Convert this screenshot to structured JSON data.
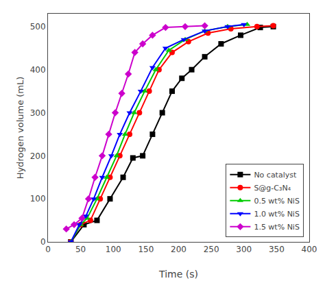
{
  "chart_data": {
    "type": "line",
    "xlabel": "Time (s)",
    "ylabel": "Hydrogen volume (mL)",
    "xlim": [
      0,
      400
    ],
    "ylim": [
      0,
      530
    ],
    "xticks": [
      0,
      50,
      100,
      150,
      200,
      250,
      300,
      350,
      400
    ],
    "yticks": [
      0,
      100,
      200,
      300,
      400,
      500
    ],
    "grid": false,
    "legend": "lower right",
    "series": [
      {
        "name": "No catalyst",
        "color": "#000000",
        "marker": "square",
        "x": [
          35,
          55,
          75,
          95,
          115,
          130,
          145,
          160,
          175,
          190,
          205,
          220,
          240,
          265,
          295,
          325,
          345
        ],
        "values": [
          0,
          40,
          50,
          100,
          150,
          195,
          200,
          250,
          300,
          350,
          380,
          400,
          430,
          460,
          480,
          498,
          500
        ]
      },
      {
        "name": "S@g-C₃N₄",
        "color": "#ff0000",
        "marker": "circle",
        "x": [
          35,
          50,
          65,
          80,
          95,
          110,
          125,
          140,
          155,
          170,
          190,
          215,
          245,
          280,
          320,
          345
        ],
        "values": [
          0,
          40,
          50,
          100,
          150,
          200,
          250,
          300,
          350,
          400,
          440,
          465,
          485,
          495,
          500,
          502
        ]
      },
      {
        "name": "0.5 wt% NiS",
        "color": "#00cc00",
        "marker": "triangle-up",
        "x": [
          35,
          50,
          60,
          75,
          90,
          105,
          118,
          132,
          148,
          165,
          185,
          210,
          240,
          275,
          305
        ],
        "values": [
          0,
          40,
          55,
          100,
          150,
          200,
          250,
          300,
          350,
          400,
          445,
          470,
          490,
          500,
          505
        ]
      },
      {
        "name": "1.0 wt% NiS",
        "color": "#0000ff",
        "marker": "triangle-down",
        "x": [
          35,
          48,
          58,
          70,
          83,
          97,
          110,
          125,
          142,
          160,
          180,
          208,
          240,
          275,
          300
        ],
        "values": [
          0,
          40,
          60,
          100,
          150,
          200,
          250,
          300,
          350,
          405,
          450,
          470,
          490,
          500,
          505
        ]
      },
      {
        "name": "1.5 wt% NiS",
        "color": "#cc00cc",
        "marker": "diamond",
        "x": [
          28,
          40,
          52,
          62,
          72,
          83,
          93,
          103,
          113,
          123,
          133,
          145,
          160,
          180,
          210,
          240
        ],
        "values": [
          30,
          40,
          55,
          100,
          150,
          200,
          250,
          300,
          345,
          390,
          440,
          460,
          480,
          498,
          500,
          502
        ]
      }
    ]
  }
}
